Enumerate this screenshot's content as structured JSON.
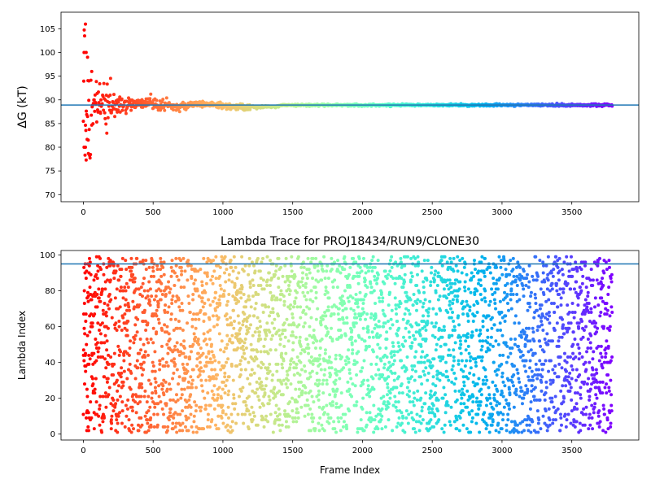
{
  "chart_data": [
    {
      "type": "scatter",
      "title": "",
      "xlabel": "",
      "ylabel": "ΔG (kT)",
      "xlim": [
        -160,
        3980
      ],
      "ylim": [
        68.5,
        108.5
      ],
      "xticks": [
        0,
        500,
        1000,
        1500,
        2000,
        2500,
        3000,
        3500
      ],
      "yticks": [
        70,
        75,
        80,
        85,
        90,
        95,
        100,
        105
      ],
      "hline": 88.9,
      "colormap": "rainbow (red at frame 0 to violet at last frame)",
      "n_frames": 3790,
      "final_value": 88.9,
      "notable_points": [
        {
          "x": 15,
          "y": 106.0
        },
        {
          "x": 5,
          "y": 100.0
        },
        {
          "x": 20,
          "y": 100.0
        },
        {
          "x": 30,
          "y": 99.0
        },
        {
          "x": 5,
          "y": 80.0
        },
        {
          "x": 15,
          "y": 80.0
        },
        {
          "x": 20,
          "y": 77.3
        },
        {
          "x": 40,
          "y": 94.0
        },
        {
          "x": 60,
          "y": 96.0
        },
        {
          "x": 35,
          "y": 81.5
        }
      ],
      "grid": false
    },
    {
      "type": "scatter",
      "title": "Lambda Trace for PROJ18434/RUN9/CLONE30",
      "xlabel": "Frame Index",
      "ylabel": "Lambda Index",
      "xlim": [
        -160,
        3980
      ],
      "ylim": [
        -3.3,
        102.5
      ],
      "xticks": [
        0,
        500,
        1000,
        1500,
        2000,
        2500,
        3000,
        3500
      ],
      "yticks": [
        0,
        20,
        40,
        60,
        80,
        100
      ],
      "hline": 95,
      "lambda_range": [
        1,
        99
      ],
      "n_frames": 3790,
      "colormap": "rainbow (red at frame 0 to violet at last frame)",
      "grid": false
    }
  ]
}
